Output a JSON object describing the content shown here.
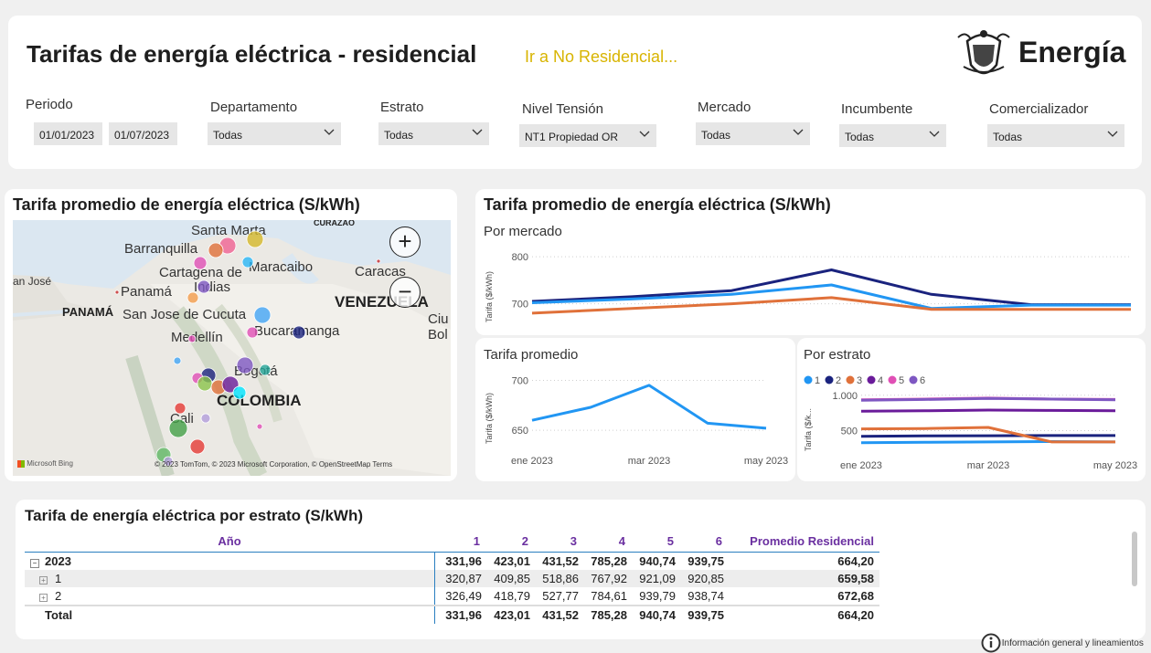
{
  "header": {
    "title": "Tarifas de energía eléctrica - residencial",
    "link": "Ir a No Residencial...",
    "brand": "Energía"
  },
  "filters": {
    "periodo": {
      "label": "Periodo",
      "from": "01/01/2023",
      "to": "01/07/2023"
    },
    "departamento": {
      "label": "Departamento",
      "value": "Todas"
    },
    "estrato": {
      "label": "Estrato",
      "value": "Todas"
    },
    "nivel": {
      "label": "Nivel Tensión",
      "value": "NT1 Propiedad OR"
    },
    "mercado": {
      "label": "Mercado",
      "value": "Todas"
    },
    "incumbente": {
      "label": "Incumbente",
      "value": "Todas"
    },
    "comercializador": {
      "label": "Comercializador",
      "value": "Todas"
    }
  },
  "map": {
    "title": "Tarifa promedio de energía eléctrica (S/kWh)",
    "labels": {
      "santa_marta": "Santa Marta",
      "barranquilla": "Barranquilla",
      "curazao": "CURAZAO",
      "cartagena": "Cartagena de",
      "indias": "Indias",
      "maracaibo": "Maracaibo",
      "caracas": "Caracas",
      "san_jose": "an José",
      "panama_city": "Panamá",
      "panama": "PANAMÁ",
      "cucuta": "San Jose de Cucuta",
      "venezuela": "VENEZUELA",
      "ciu": "Ciu",
      "bol": "Bol",
      "medellin": "Medellín",
      "bucaramanga": "Bucaramanga",
      "bogota": "Bogotá",
      "colombia": "COLOMBIA",
      "cali": "Cali"
    },
    "attribution": "© 2023 TomTom, © 2023 Microsoft Corporation, © OpenStreetMap  Terms",
    "bing": "Microsoft Bing",
    "zoom_in": "+",
    "zoom_out": "−"
  },
  "charts_panel": {
    "title": "Tarifa promedio de energía eléctrica (S/kWh)"
  },
  "chart_data": [
    {
      "type": "line",
      "subtitle": "Por mercado",
      "ylabel": "Tarifa ($/kWh)",
      "yticks": [
        700,
        800
      ],
      "ylim": [
        670,
        810
      ],
      "x": [
        0,
        1,
        2,
        3,
        4,
        5,
        6
      ],
      "series": [
        {
          "color": "#1a237e",
          "values": [
            705,
            715,
            728,
            772,
            720,
            698,
            698
          ]
        },
        {
          "color": "#2196f3",
          "values": [
            702,
            710,
            720,
            740,
            690,
            697,
            697
          ]
        },
        {
          "color": "#e0713a",
          "values": [
            680,
            690,
            700,
            713,
            688,
            688,
            688
          ]
        }
      ]
    },
    {
      "type": "line",
      "subtitle": "Tarifa promedio",
      "ylabel": "Tarifa ($/kWh)",
      "categories": [
        "ene 2023",
        "mar 2023",
        "may 2023"
      ],
      "yticks": [
        650,
        700
      ],
      "ylim": [
        640,
        705
      ],
      "x": [
        0,
        1,
        2,
        3,
        4
      ],
      "series": [
        {
          "color": "#2196f3",
          "values": [
            660,
            673,
            695,
            657,
            652
          ]
        }
      ]
    },
    {
      "type": "line",
      "subtitle": "Por estrato",
      "ylabel": "Tarifa ($/k...",
      "categories": [
        "ene 2023",
        "mar 2023",
        "may 2023"
      ],
      "yticks": [
        500,
        1000
      ],
      "ytick_labels": [
        "500",
        "1.000"
      ],
      "ylim": [
        300,
        1100
      ],
      "x": [
        0,
        1,
        2,
        3,
        4
      ],
      "legend": [
        "1",
        "2",
        "3",
        "4",
        "5",
        "6"
      ],
      "series": [
        {
          "name": "1",
          "color": "#2196f3",
          "values": [
            330,
            335,
            340,
            345,
            340
          ]
        },
        {
          "name": "2",
          "color": "#1a237e",
          "values": [
            420,
            425,
            428,
            430,
            430
          ]
        },
        {
          "name": "3",
          "color": "#e0713a",
          "values": [
            525,
            530,
            545,
            340,
            340
          ]
        },
        {
          "name": "4",
          "color": "#6a1b9a",
          "values": [
            775,
            780,
            790,
            785,
            780
          ]
        },
        {
          "name": "5",
          "color": "#e04fb5",
          "values": [
            935,
            945,
            960,
            945,
            940
          ]
        },
        {
          "name": "6",
          "color": "#7e57c2",
          "values": [
            930,
            940,
            955,
            945,
            935
          ]
        }
      ]
    }
  ],
  "matrix": {
    "title": "Tarifa de energía eléctrica por estrato (S/kWh)",
    "headers": [
      "Año",
      "1",
      "2",
      "3",
      "4",
      "5",
      "6",
      "Promedio Residencial"
    ],
    "rows": [
      {
        "label": "2023",
        "vals": [
          "331,96",
          "423,01",
          "431,52",
          "785,28",
          "940,74",
          "939,75",
          "664,20"
        ]
      },
      {
        "label": "1",
        "vals": [
          "320,87",
          "409,85",
          "518,86",
          "767,92",
          "921,09",
          "920,85",
          "659,58"
        ]
      },
      {
        "label": "2",
        "vals": [
          "326,49",
          "418,79",
          "527,77",
          "784,61",
          "939,79",
          "938,74",
          "672,68"
        ]
      }
    ],
    "total": {
      "label": "Total",
      "vals": [
        "331,96",
        "423,01",
        "431,52",
        "785,28",
        "940,74",
        "939,75",
        "664,20"
      ]
    }
  },
  "footer": {
    "info": "Información general y lineamientos"
  }
}
